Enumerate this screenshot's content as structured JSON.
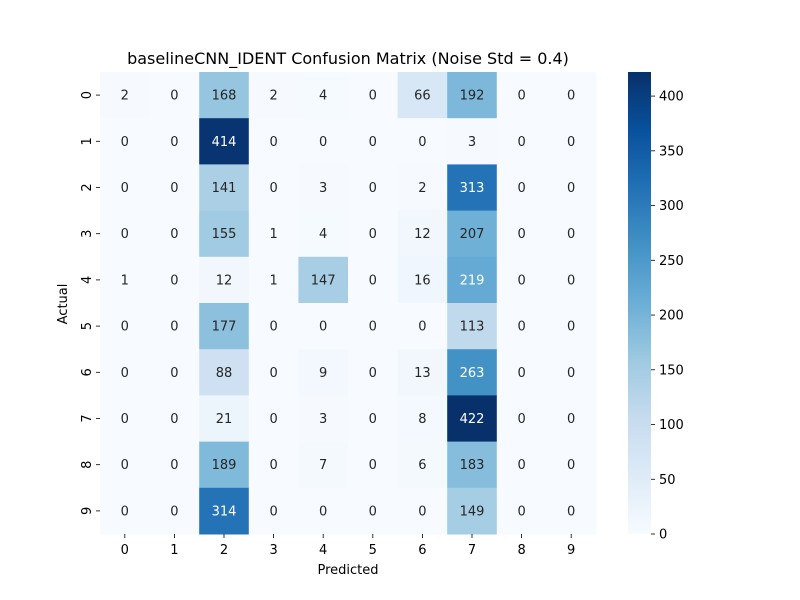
{
  "chart_data": {
    "type": "heatmap",
    "title": "baselineCNN_IDENT Confusion Matrix (Noise Std = 0.4)",
    "xlabel": "Predicted",
    "ylabel": "Actual",
    "x_categories": [
      "0",
      "1",
      "2",
      "3",
      "4",
      "5",
      "6",
      "7",
      "8",
      "9"
    ],
    "y_categories": [
      "0",
      "1",
      "2",
      "3",
      "4",
      "5",
      "6",
      "7",
      "8",
      "9"
    ],
    "values": [
      [
        2,
        0,
        168,
        2,
        4,
        0,
        66,
        192,
        0,
        0
      ],
      [
        0,
        0,
        414,
        0,
        0,
        0,
        0,
        3,
        0,
        0
      ],
      [
        0,
        0,
        141,
        0,
        3,
        0,
        2,
        313,
        0,
        0
      ],
      [
        0,
        0,
        155,
        1,
        4,
        0,
        12,
        207,
        0,
        0
      ],
      [
        1,
        0,
        12,
        1,
        147,
        0,
        16,
        219,
        0,
        0
      ],
      [
        0,
        0,
        177,
        0,
        0,
        0,
        0,
        113,
        0,
        0
      ],
      [
        0,
        0,
        88,
        0,
        9,
        0,
        13,
        263,
        0,
        0
      ],
      [
        0,
        0,
        21,
        0,
        3,
        0,
        8,
        422,
        0,
        0
      ],
      [
        0,
        0,
        189,
        0,
        7,
        0,
        6,
        183,
        0,
        0
      ],
      [
        0,
        0,
        314,
        0,
        0,
        0,
        0,
        149,
        0,
        0
      ]
    ],
    "colormap": "Blues",
    "vmin": 0,
    "vmax": 422,
    "colorbar_ticks": [
      "0",
      "50",
      "100",
      "150",
      "200",
      "250",
      "300",
      "350",
      "400"
    ],
    "annotations": true
  }
}
